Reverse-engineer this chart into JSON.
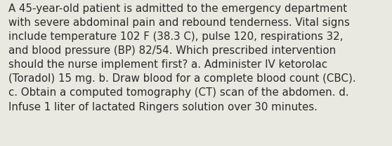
{
  "lines": [
    "A 45-year-old patient is admitted to the emergency department",
    "with severe abdominal pain and rebound tenderness. Vital signs",
    "include temperature 102 F (38.3 C), pulse 120, respirations 32,",
    "and blood pressure (BP) 82/54. Which prescribed intervention",
    "should the nurse implement first? a. Administer IV ketorolac",
    "(Toradol) 15 mg. b. Draw blood for a complete blood count (CBC).",
    "c. Obtain a computed tomography (CT) scan of the abdomen. d.",
    "Infuse 1 liter of lactated Ringers solution over 30 minutes."
  ],
  "background_color": "#e9e9e1",
  "text_color": "#2a2a2a",
  "font_size": 10.8,
  "font_family": "DejaVu Sans",
  "fig_width": 5.58,
  "fig_height": 2.09,
  "dpi": 100
}
